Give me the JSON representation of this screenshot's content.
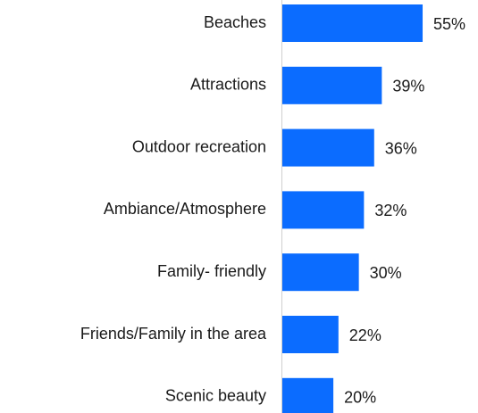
{
  "chart_data": {
    "type": "bar",
    "orientation": "horizontal",
    "categories": [
      "Beaches",
      "Attractions",
      "Outdoor recreation",
      "Ambiance/Atmosphere",
      "Family- friendly",
      "Friends/Family in the area",
      "Scenic beauty"
    ],
    "values": [
      55,
      39,
      36,
      32,
      30,
      22,
      20
    ],
    "value_labels": [
      "55%",
      "39%",
      "36%",
      "32%",
      "30%",
      "22%",
      "20%"
    ],
    "color": "#0b6cff"
  }
}
